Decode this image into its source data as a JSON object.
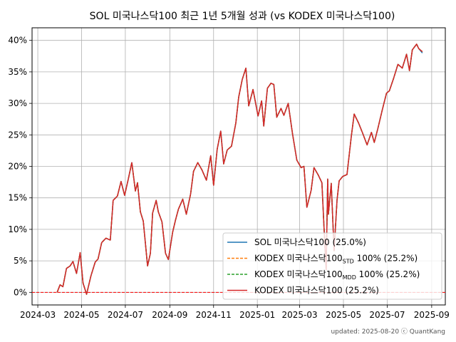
{
  "chart_data": {
    "type": "line",
    "title": "SOL 미국나스닥100 최근 1년 5개월 성과 (vs KODEX 미국나스닥100)",
    "xlabel": "",
    "ylabel": "",
    "x_ticks": [
      "2024-03",
      "2024-05",
      "2024-07",
      "2024-09",
      "2024-11",
      "2025-01",
      "2025-03",
      "2025-05",
      "2025-07",
      "2025-09"
    ],
    "y_ticks": [
      "0%",
      "5%",
      "10%",
      "15%",
      "20%",
      "25%",
      "30%",
      "35%",
      "40%"
    ],
    "xlim": [
      "2024-02-22",
      "2025-09-20"
    ],
    "ylim": [
      -2,
      42
    ],
    "grid": true,
    "legend_position": "lower-right",
    "baseline": 0,
    "dates": [
      "2024-03-28",
      "2024-04-01",
      "2024-04-05",
      "2024-04-10",
      "2024-04-15",
      "2024-04-19",
      "2024-04-24",
      "2024-04-29",
      "2024-05-03",
      "2024-05-08",
      "2024-05-14",
      "2024-05-20",
      "2024-05-24",
      "2024-05-29",
      "2024-06-04",
      "2024-06-10",
      "2024-06-14",
      "2024-06-20",
      "2024-06-25",
      "2024-06-30",
      "2024-07-05",
      "2024-07-10",
      "2024-07-15",
      "2024-07-18",
      "2024-07-22",
      "2024-07-26",
      "2024-08-01",
      "2024-08-05",
      "2024-08-08",
      "2024-08-13",
      "2024-08-16",
      "2024-08-21",
      "2024-08-26",
      "2024-08-30",
      "2024-09-05",
      "2024-09-09",
      "2024-09-13",
      "2024-09-19",
      "2024-09-24",
      "2024-09-30",
      "2024-10-04",
      "2024-10-10",
      "2024-10-16",
      "2024-10-22",
      "2024-10-28",
      "2024-11-01",
      "2024-11-06",
      "2024-11-11",
      "2024-11-15",
      "2024-11-20",
      "2024-11-26",
      "2024-12-02",
      "2024-12-06",
      "2024-12-11",
      "2024-12-16",
      "2024-12-20",
      "2024-12-26",
      "2025-01-02",
      "2025-01-07",
      "2025-01-10",
      "2025-01-15",
      "2025-01-20",
      "2025-01-24",
      "2025-01-28",
      "2025-02-03",
      "2025-02-07",
      "2025-02-13",
      "2025-02-19",
      "2025-02-25",
      "2025-03-03",
      "2025-03-07",
      "2025-03-11",
      "2025-03-17",
      "2025-03-21",
      "2025-03-27",
      "2025-04-01",
      "2025-04-04",
      "2025-04-07",
      "2025-04-09",
      "2025-04-10",
      "2025-04-14",
      "2025-04-18",
      "2025-04-22",
      "2025-04-25",
      "2025-04-30",
      "2025-05-06",
      "2025-05-12",
      "2025-05-16",
      "2025-05-22",
      "2025-05-28",
      "2025-06-03",
      "2025-06-09",
      "2025-06-13",
      "2025-06-18",
      "2025-06-24",
      "2025-06-30",
      "2025-07-04",
      "2025-07-10",
      "2025-07-16",
      "2025-07-22",
      "2025-07-28",
      "2025-08-01",
      "2025-08-05",
      "2025-08-11",
      "2025-08-14",
      "2025-08-19"
    ],
    "series": [
      {
        "name": "SOL 미국나스닥100 (25.0%)",
        "color": "#1f77b4",
        "style": "solid",
        "values": [
          0.0,
          1.2,
          0.9,
          3.8,
          4.2,
          4.9,
          3.0,
          6.3,
          1.5,
          -0.3,
          2.6,
          4.8,
          5.3,
          7.9,
          8.6,
          8.3,
          14.6,
          15.3,
          17.6,
          15.4,
          17.9,
          20.6,
          16.1,
          17.4,
          12.8,
          11.3,
          4.2,
          6.2,
          12.6,
          14.6,
          12.8,
          11.2,
          6.2,
          5.2,
          9.6,
          11.5,
          13.2,
          14.8,
          12.4,
          15.6,
          19.2,
          20.6,
          19.4,
          17.8,
          21.7,
          17.0,
          22.7,
          25.6,
          20.4,
          22.6,
          23.2,
          26.9,
          31.0,
          33.8,
          35.6,
          29.6,
          32.2,
          28.0,
          30.4,
          26.4,
          32.4,
          33.2,
          33.0,
          27.8,
          29.2,
          28.1,
          30.0,
          25.2,
          21.0,
          19.8,
          20.0,
          13.5,
          16.2,
          19.8,
          18.6,
          17.4,
          10.2,
          3.6,
          18.0,
          12.4,
          17.3,
          6.6,
          14.6,
          17.7,
          18.4,
          18.7,
          24.8,
          28.3,
          26.9,
          25.2,
          23.4,
          25.4,
          23.8,
          26.0,
          28.9,
          31.6,
          32.0,
          34.0,
          36.2,
          35.6,
          37.8,
          35.2,
          38.5,
          39.4,
          38.7,
          38.0
        ]
      },
      {
        "name": "KODEX 미국나스닥100STD 100% (25.2%)",
        "color": "#ff7f0e",
        "style": "dashed",
        "values": [
          0.0,
          1.2,
          0.9,
          3.8,
          4.2,
          4.9,
          3.0,
          6.3,
          1.5,
          -0.3,
          2.6,
          4.8,
          5.3,
          7.9,
          8.6,
          8.3,
          14.6,
          15.3,
          17.6,
          15.4,
          17.9,
          20.6,
          16.1,
          17.4,
          12.8,
          11.3,
          4.2,
          6.2,
          12.6,
          14.6,
          12.8,
          11.2,
          6.2,
          5.2,
          9.6,
          11.5,
          13.2,
          14.8,
          12.4,
          15.6,
          19.2,
          20.6,
          19.4,
          17.8,
          21.7,
          17.0,
          22.7,
          25.6,
          20.4,
          22.6,
          23.2,
          26.9,
          31.0,
          33.8,
          35.6,
          29.6,
          32.2,
          28.0,
          30.4,
          26.4,
          32.4,
          33.2,
          33.0,
          27.8,
          29.2,
          28.1,
          30.0,
          25.2,
          21.0,
          19.8,
          20.0,
          13.5,
          16.2,
          19.8,
          18.6,
          17.4,
          10.2,
          3.6,
          18.0,
          12.4,
          17.3,
          6.6,
          14.6,
          17.7,
          18.4,
          18.7,
          24.8,
          28.3,
          26.9,
          25.2,
          23.4,
          25.4,
          23.8,
          26.0,
          28.9,
          31.6,
          32.0,
          34.0,
          36.2,
          35.6,
          37.8,
          35.2,
          38.5,
          39.4,
          38.7,
          38.2
        ]
      },
      {
        "name": "KODEX 미국나스닥100MDD 100% (25.2%)",
        "color": "#2ca02c",
        "style": "dashed",
        "values": [
          0.0,
          1.2,
          0.9,
          3.8,
          4.2,
          4.9,
          3.0,
          6.3,
          1.5,
          -0.3,
          2.6,
          4.8,
          5.3,
          7.9,
          8.6,
          8.3,
          14.6,
          15.3,
          17.6,
          15.4,
          17.9,
          20.6,
          16.1,
          17.4,
          12.8,
          11.3,
          4.2,
          6.2,
          12.6,
          14.6,
          12.8,
          11.2,
          6.2,
          5.2,
          9.6,
          11.5,
          13.2,
          14.8,
          12.4,
          15.6,
          19.2,
          20.6,
          19.4,
          17.8,
          21.7,
          17.0,
          22.7,
          25.6,
          20.4,
          22.6,
          23.2,
          26.9,
          31.0,
          33.8,
          35.6,
          29.6,
          32.2,
          28.0,
          30.4,
          26.4,
          32.4,
          33.2,
          33.0,
          27.8,
          29.2,
          28.1,
          30.0,
          25.2,
          21.0,
          19.8,
          20.0,
          13.5,
          16.2,
          19.8,
          18.6,
          17.4,
          10.2,
          3.6,
          18.0,
          12.4,
          17.3,
          6.6,
          14.6,
          17.7,
          18.4,
          18.7,
          24.8,
          28.3,
          26.9,
          25.2,
          23.4,
          25.4,
          23.8,
          26.0,
          28.9,
          31.6,
          32.0,
          34.0,
          36.2,
          35.6,
          37.8,
          35.2,
          38.5,
          39.4,
          38.7,
          38.2
        ]
      },
      {
        "name": "KODEX 미국나스닥100 (25.2%)",
        "color": "#d62728",
        "style": "solid",
        "values": [
          0.0,
          1.2,
          0.9,
          3.8,
          4.2,
          4.9,
          3.0,
          6.3,
          1.5,
          -0.3,
          2.6,
          4.8,
          5.3,
          7.9,
          8.6,
          8.3,
          14.6,
          15.3,
          17.6,
          15.4,
          17.9,
          20.6,
          16.1,
          17.4,
          12.8,
          11.3,
          4.2,
          6.2,
          12.6,
          14.6,
          12.8,
          11.2,
          6.2,
          5.2,
          9.6,
          11.5,
          13.2,
          14.8,
          12.4,
          15.6,
          19.2,
          20.6,
          19.4,
          17.8,
          21.7,
          17.0,
          22.7,
          25.6,
          20.4,
          22.6,
          23.2,
          26.9,
          31.0,
          33.8,
          35.6,
          29.6,
          32.2,
          28.0,
          30.4,
          26.4,
          32.4,
          33.2,
          33.0,
          27.8,
          29.2,
          28.1,
          30.0,
          25.2,
          21.0,
          19.8,
          20.0,
          13.5,
          16.2,
          19.8,
          18.6,
          17.4,
          10.2,
          3.6,
          18.0,
          12.4,
          17.3,
          6.6,
          14.6,
          17.7,
          18.4,
          18.7,
          24.8,
          28.3,
          26.9,
          25.2,
          23.4,
          25.4,
          23.8,
          26.0,
          28.9,
          31.6,
          32.0,
          34.0,
          36.2,
          35.6,
          37.8,
          35.2,
          38.5,
          39.4,
          38.7,
          38.2
        ]
      }
    ],
    "legend": [
      {
        "main": "SOL 미국나스닥100 (25.0%)",
        "sub": "",
        "rest": ""
      },
      {
        "main": "KODEX 미국나스닥100",
        "sub": "STD",
        "rest": " 100% (25.2%)"
      },
      {
        "main": "KODEX 미국나스닥100",
        "sub": "MDD",
        "rest": " 100% (25.2%)"
      },
      {
        "main": "KODEX 미국나스닥100 (25.2%)",
        "sub": "",
        "rest": ""
      }
    ],
    "footer": "updated: 2025-08-20 ⓒ QuantKang"
  }
}
